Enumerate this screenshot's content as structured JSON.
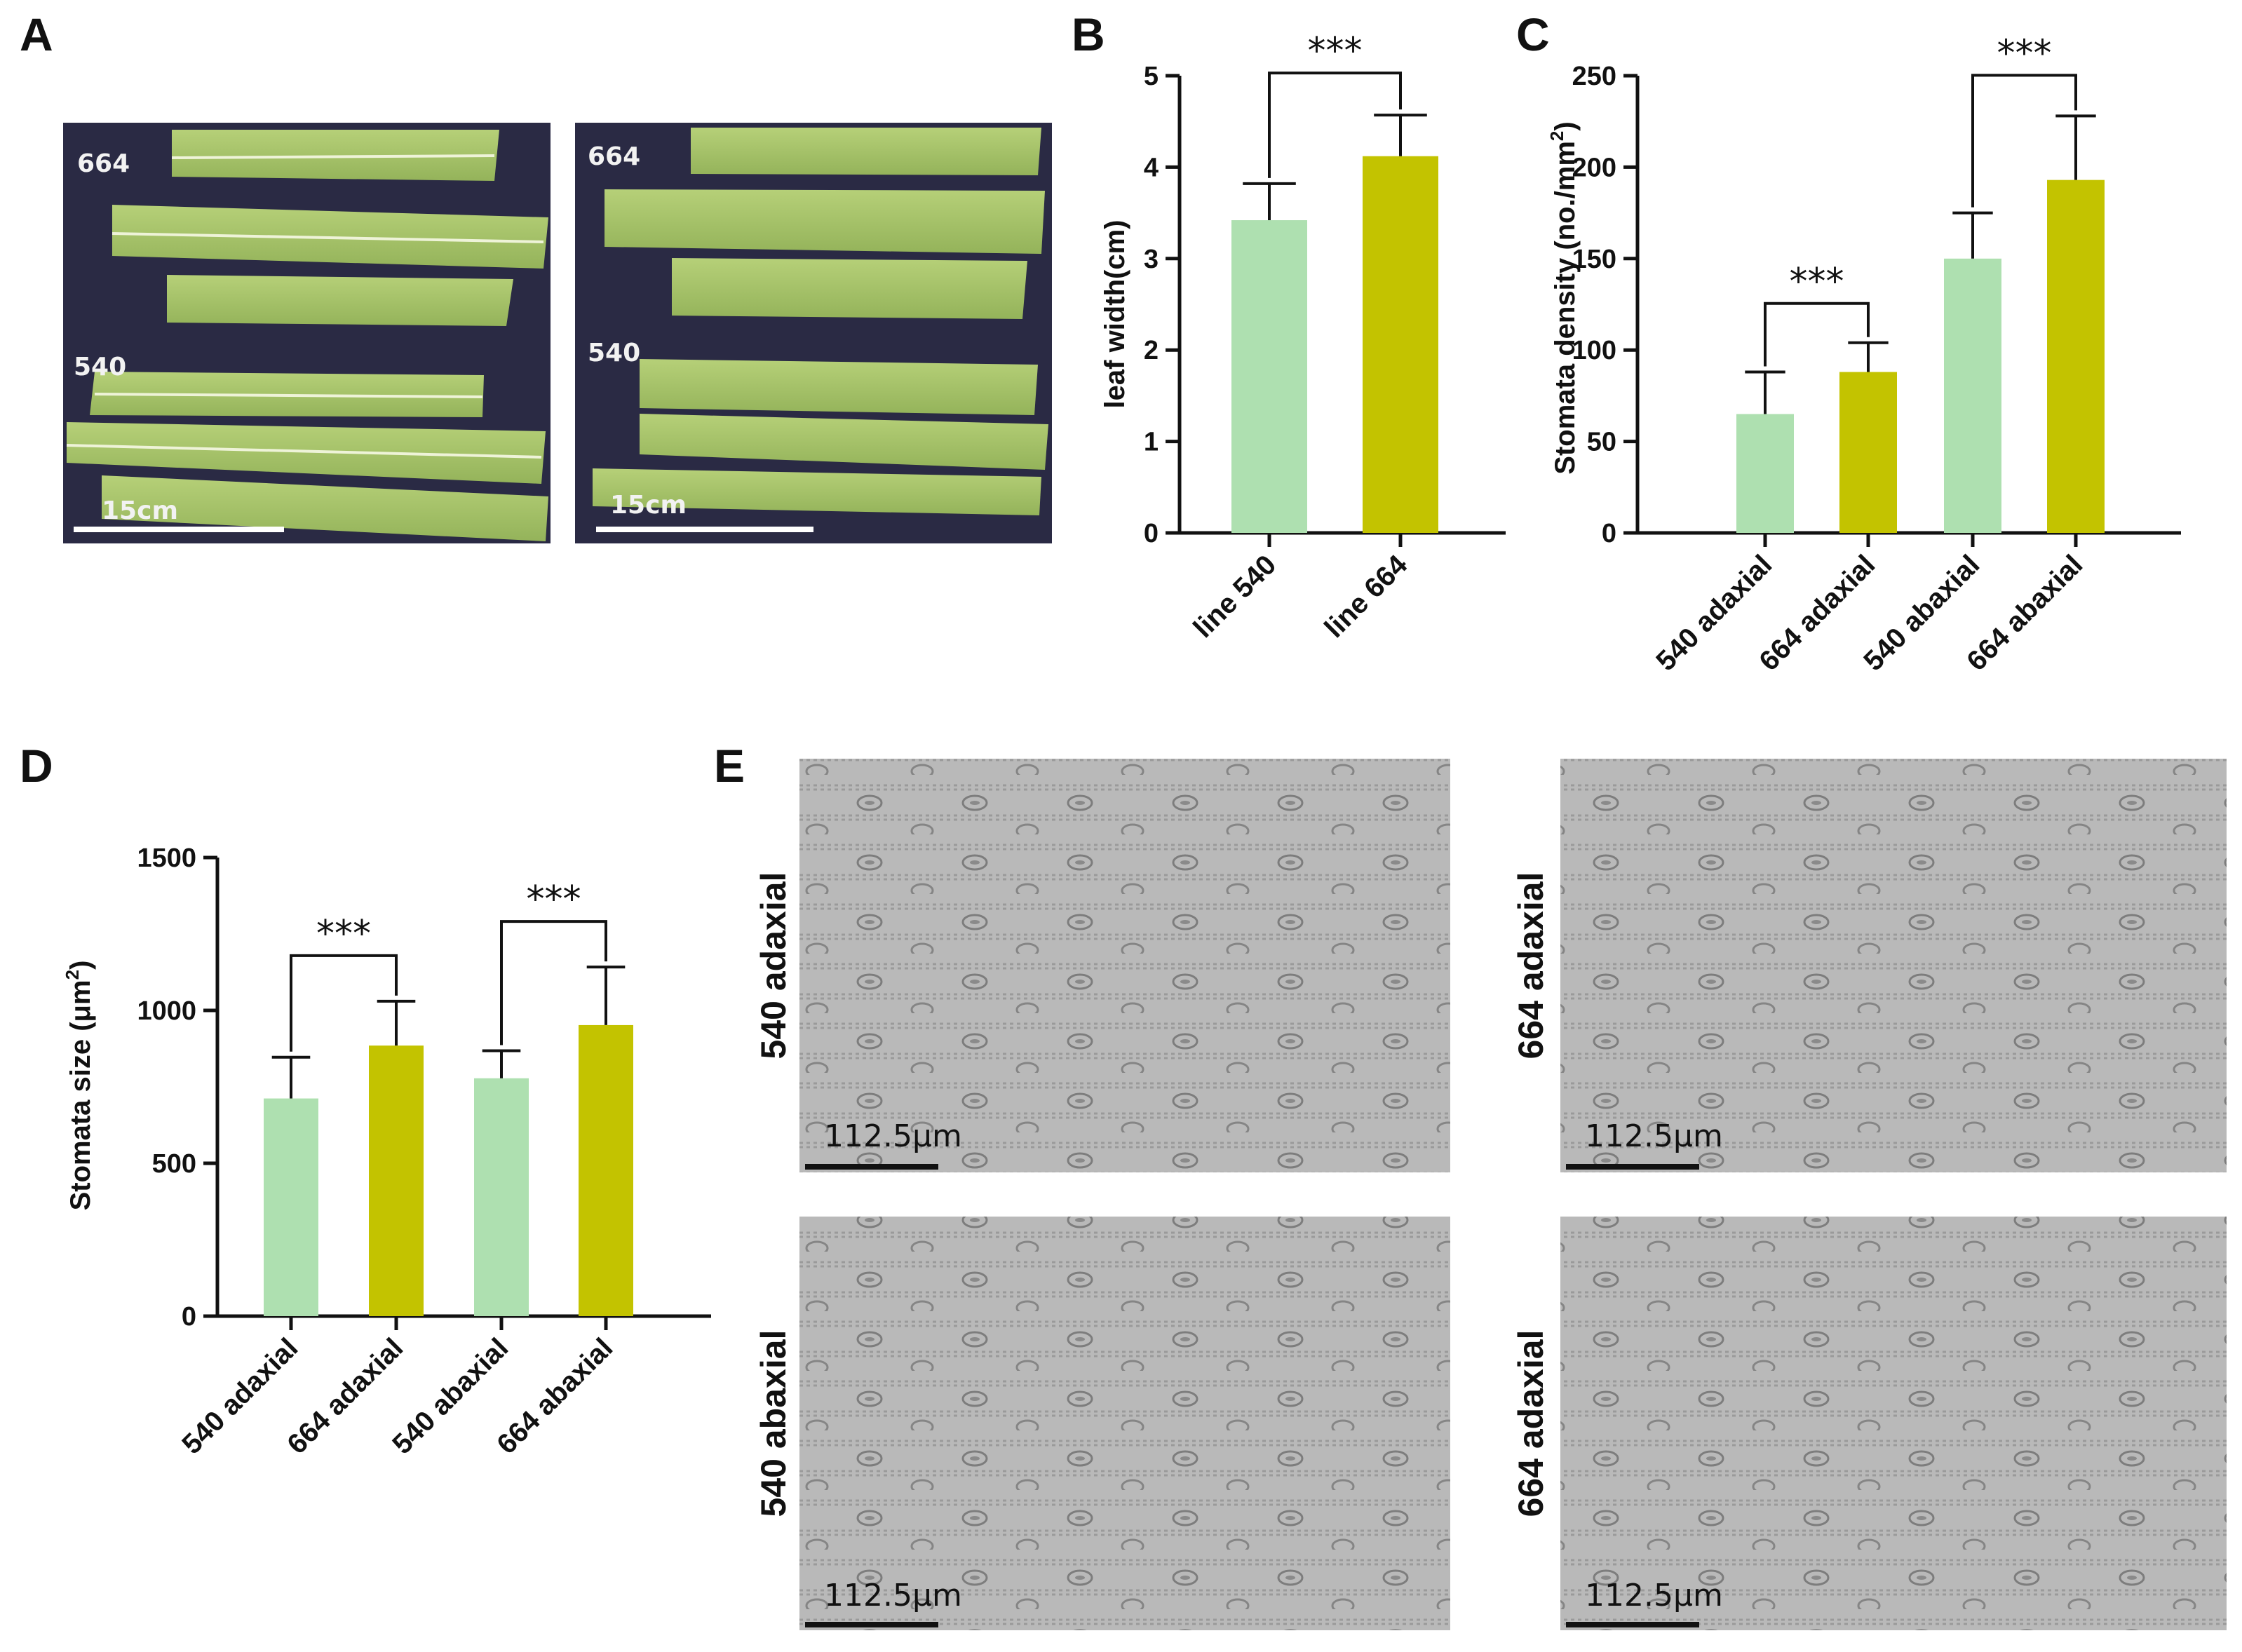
{
  "panels": {
    "A": "A",
    "B": "B",
    "C": "C",
    "D": "D",
    "E": "E"
  },
  "photos": [
    {
      "tag_top": "664",
      "tag_mid": "540",
      "scale": "15cm"
    },
    {
      "tag_top": "664",
      "tag_mid": "540",
      "scale": "15cm"
    }
  ],
  "colors": {
    "line540": "#aee0b0",
    "line664": "#c3c300",
    "axis": "#111111"
  },
  "chart_data": [
    {
      "panel": "B",
      "type": "bar",
      "categories": [
        "line 540",
        "line 664"
      ],
      "values": [
        3.42,
        4.12
      ],
      "errors": [
        0.4,
        0.45
      ],
      "ylabel": "leaf width(cm)",
      "ylim": [
        0,
        5
      ],
      "yticks": [
        "0",
        "1",
        "2",
        "3",
        "4",
        "5"
      ],
      "significance": [
        {
          "a": 0,
          "b": 1,
          "label": "***"
        }
      ],
      "grid": false
    },
    {
      "panel": "C",
      "type": "bar",
      "categories": [
        "540 adaxial",
        "664 adaxial",
        "540 abaxial",
        "664 abaxial"
      ],
      "values": [
        65,
        88,
        150,
        193
      ],
      "errors": [
        23,
        16,
        25,
        35
      ],
      "ylabel": "Stomata density (no./mm",
      "ylabel_sup": "2",
      "ylabel_end": ")",
      "ylim": [
        0,
        250
      ],
      "yticks": [
        "0",
        "50",
        "100",
        "150",
        "200",
        "250"
      ],
      "significance": [
        {
          "a": 0,
          "b": 1,
          "label": "***"
        },
        {
          "a": 2,
          "b": 3,
          "label": "***"
        }
      ],
      "grid": false
    },
    {
      "panel": "D",
      "type": "bar",
      "categories": [
        "540 adaxial",
        "664 adaxial",
        "540 abaxial",
        "664 abaxial"
      ],
      "values": [
        712,
        885,
        778,
        952
      ],
      "errors": [
        135,
        145,
        90,
        190
      ],
      "ylabel": "Stomata size (μm",
      "ylabel_sup": "2",
      "ylabel_end": ")",
      "ylim": [
        0,
        1500
      ],
      "yticks": [
        "0",
        "500",
        "1000",
        "1500"
      ],
      "significance": [
        {
          "a": 0,
          "b": 1,
          "label": "***"
        },
        {
          "a": 2,
          "b": 3,
          "label": "***"
        }
      ],
      "grid": false
    }
  ],
  "micrographs": [
    {
      "label": "540 adaxial",
      "scale": "112.5μm"
    },
    {
      "label": "664 adaxial",
      "scale": "112.5μm"
    },
    {
      "label": "540 abaxial",
      "scale": "112.5μm"
    },
    {
      "label": "664 adaxial",
      "scale": "112.5μm"
    }
  ]
}
